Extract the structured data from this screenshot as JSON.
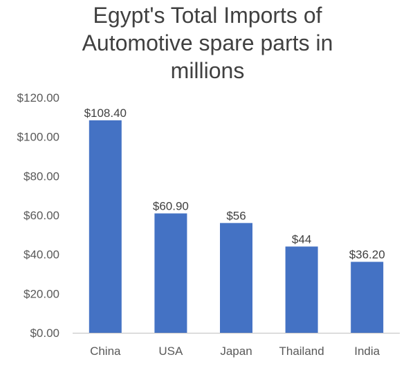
{
  "chart_data": {
    "type": "bar",
    "title_lines": [
      "Egypt's Total Imports of",
      "Automotive spare parts in",
      "millions"
    ],
    "categories": [
      "China",
      "USA",
      "Japan",
      "Thailand",
      "India"
    ],
    "values": [
      108.4,
      60.9,
      56,
      44,
      36.2
    ],
    "data_labels": [
      "$108.40",
      "$60.90",
      "$56",
      "$44",
      "$36.20"
    ],
    "ylim": [
      0,
      120
    ],
    "yticks": [
      0,
      20,
      40,
      60,
      80,
      100,
      120
    ],
    "ytick_labels": [
      "$0.00",
      "$20.00",
      "$40.00",
      "$60.00",
      "$80.00",
      "$100.00",
      "$120.00"
    ],
    "xlabel": "",
    "ylabel": "",
    "grid": false,
    "legend": "none",
    "bar_color": "#4472c4"
  }
}
